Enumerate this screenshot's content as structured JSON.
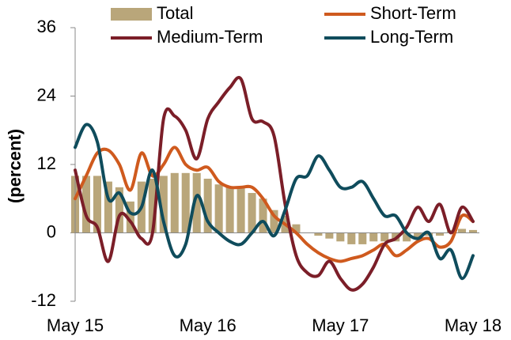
{
  "chart_data": {
    "type": "combo",
    "y_label": "(percent)",
    "categories": [
      "May 15",
      null,
      null,
      null,
      null,
      null,
      null,
      null,
      null,
      null,
      null,
      null,
      "May 16",
      null,
      null,
      null,
      null,
      null,
      null,
      null,
      null,
      null,
      null,
      null,
      "May 17",
      null,
      null,
      null,
      null,
      null,
      null,
      null,
      null,
      null,
      null,
      null,
      "May 18"
    ],
    "ylim": [
      -12,
      36
    ],
    "yticks": [
      -12,
      0,
      12,
      24,
      36
    ],
    "series": [
      {
        "name": "Total",
        "type": "bar",
        "color": "#b9a67a",
        "values": [
          10,
          10,
          10,
          9,
          8,
          5.5,
          9,
          9.5,
          10,
          10.5,
          10.5,
          10.5,
          9.5,
          8.5,
          8,
          8,
          7,
          6,
          4,
          3,
          1.5,
          0,
          -0.5,
          -1,
          -1.5,
          -2,
          -2,
          -1.5,
          -1.5,
          -1.5,
          -1.5,
          -1,
          -0.5,
          -0.5,
          0.5,
          0.7,
          0.5
        ]
      },
      {
        "name": "Short-Term",
        "type": "line",
        "color": "#cf5a1e",
        "values": [
          6,
          10,
          14,
          14.5,
          12,
          7.5,
          14,
          10,
          12,
          15,
          12,
          11,
          11.5,
          9,
          8,
          8,
          8,
          6,
          3,
          1.5,
          0,
          -2,
          -3.5,
          -4.5,
          -5,
          -4.5,
          -4,
          -3,
          -2,
          -4,
          -3,
          -1.5,
          -1,
          -2.5,
          -1.5,
          3,
          2
        ]
      },
      {
        "name": "Medium-Term",
        "type": "line",
        "color": "#7b1e28",
        "values": [
          11,
          3,
          1,
          -5,
          3,
          2,
          -1,
          0,
          20,
          20.5,
          18,
          13,
          20,
          23,
          25.5,
          27,
          20,
          19.5,
          17,
          5,
          -4,
          -7,
          -7.5,
          -5,
          -8,
          -10,
          -9,
          -6,
          -2,
          -1,
          1,
          4.5,
          2,
          5,
          0,
          4.5,
          2
        ]
      },
      {
        "name": "Long-Term",
        "type": "line",
        "color": "#0f4c5c",
        "values": [
          15,
          19,
          16,
          6,
          7,
          3.5,
          4.5,
          11,
          2,
          -4,
          -2,
          6.5,
          2,
          0,
          -1.5,
          -2,
          0,
          2,
          -0.5,
          4,
          9.5,
          10,
          13.5,
          11,
          8,
          8,
          9,
          6,
          3,
          3,
          0,
          -1,
          0,
          -4.5,
          -3,
          -8,
          -4
        ]
      }
    ]
  }
}
